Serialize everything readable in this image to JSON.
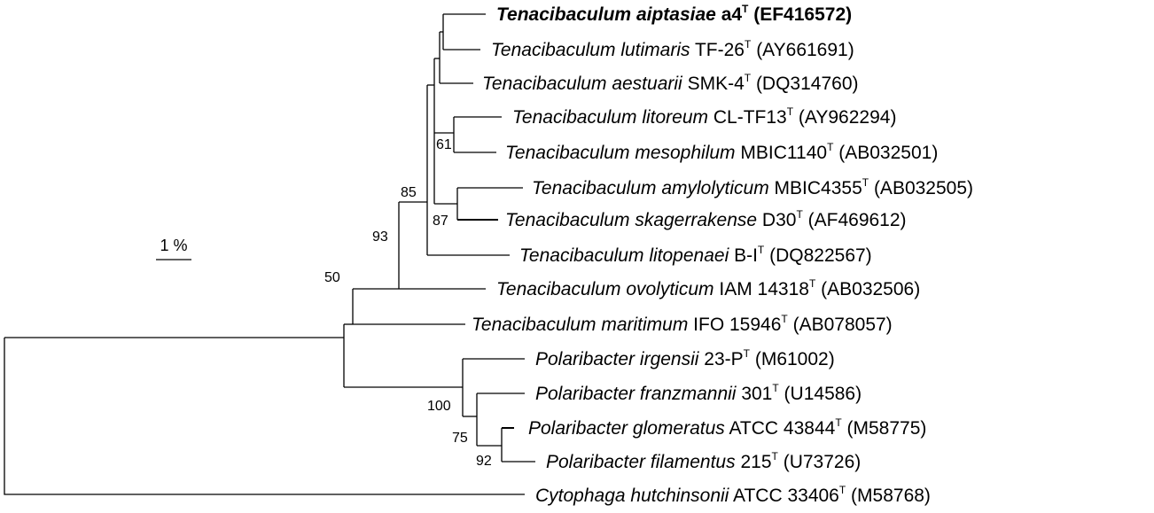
{
  "tree": {
    "scale_label": "1 %",
    "bootstrap": [
      "61",
      "85",
      "87",
      "93",
      "50",
      "100",
      "75",
      "92"
    ],
    "taxa": [
      {
        "genus": "Tenacibaculum",
        "species": "aiptasiae",
        "strain": "a4",
        "sup": "T",
        "accession": "(EF416572)",
        "bold": true
      },
      {
        "genus": "Tenacibaculum",
        "species": "lutimaris",
        "strain": "TF-26",
        "sup": "T",
        "accession": "(AY661691)",
        "bold": false
      },
      {
        "genus": "Tenacibaculum",
        "species": "aestuarii",
        "strain": "SMK-4",
        "sup": "T",
        "accession": "(DQ314760)",
        "bold": false
      },
      {
        "genus": "Tenacibaculum",
        "species": "litoreum",
        "strain": "CL-TF13",
        "sup": "T",
        "accession": "(AY962294)",
        "bold": false
      },
      {
        "genus": "Tenacibaculum",
        "species": "mesophilum",
        "strain": "MBIC1140",
        "sup": "T",
        "accession": "(AB032501)",
        "bold": false
      },
      {
        "genus": "Tenacibaculum",
        "species": "amylolyticum",
        "strain": "MBIC4355",
        "sup": "T",
        "accession": "(AB032505)",
        "bold": false
      },
      {
        "genus": "Tenacibaculum",
        "species": "skagerrakense",
        "strain": "D30",
        "sup": "T",
        "accession": "(AF469612)",
        "bold": false
      },
      {
        "genus": "Tenacibaculum",
        "species": "litopenaei",
        "strain": "B-I",
        "sup": "T",
        "accession": "(DQ822567)",
        "bold": false
      },
      {
        "genus": "Tenacibaculum",
        "species": "ovolyticum",
        "strain": "IAM 14318",
        "sup": "T",
        "accession": "(AB032506)",
        "bold": false
      },
      {
        "genus": "Tenacibaculum",
        "species": "maritimum",
        "strain": "IFO 15946",
        "sup": "T",
        "accession": "(AB078057)",
        "bold": false
      },
      {
        "genus": "Polaribacter",
        "species": "irgensii",
        "strain": "23-P",
        "sup": "T",
        "accession": "(M61002)",
        "bold": false
      },
      {
        "genus": "Polaribacter",
        "species": "franzmannii",
        "strain": "301",
        "sup": "T",
        "accession": "(U14586)",
        "bold": false
      },
      {
        "genus": "Polaribacter",
        "species": "glomeratus",
        "strain": "ATCC 43844",
        "sup": "T",
        "accession": "(M58775)",
        "bold": false
      },
      {
        "genus": "Polaribacter",
        "species": "filamentus",
        "strain": "215",
        "sup": "T",
        "accession": "(U73726)",
        "bold": false
      },
      {
        "genus": "Cytophaga",
        "species": "hutchinsonii",
        "strain": "ATCC 33406",
        "sup": "T",
        "accession": "(M58768)",
        "bold": false
      }
    ]
  }
}
